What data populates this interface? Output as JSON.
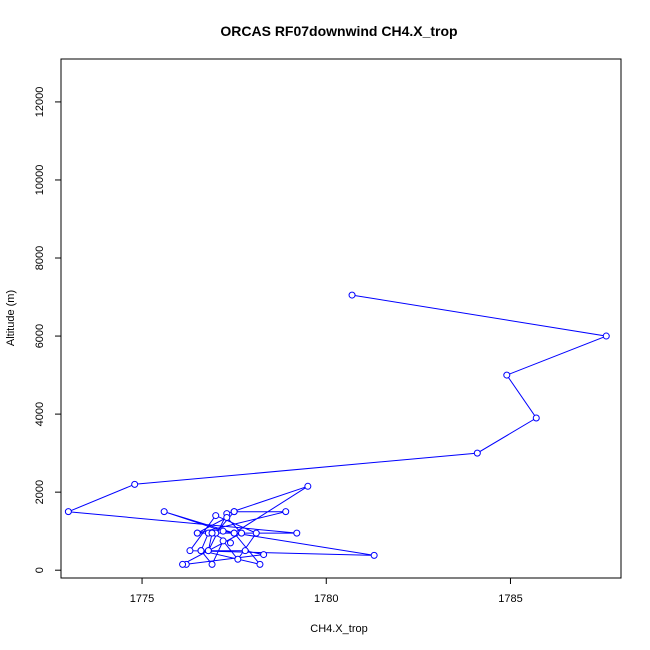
{
  "chart_data": {
    "type": "line",
    "title": "ORCAS RF07downwind CH4.X_trop",
    "xlabel": "CH4.X_trop",
    "ylabel": "Altitude (m)",
    "xlim": [
      1772.8,
      1788.0
    ],
    "ylim": [
      -200,
      13100
    ],
    "xticks": [
      1775,
      1780,
      1785
    ],
    "yticks": [
      0,
      2000,
      4000,
      6000,
      8000,
      10000,
      12000
    ],
    "grid": false,
    "legend": "none",
    "colors": {
      "series": "#0000ff",
      "axis": "#000000"
    },
    "series": [
      {
        "x": [
          1780.7,
          1787.6,
          1784.9,
          1785.7,
          1784.1,
          1774.8,
          1773.0,
          1779.2,
          1776.5,
          1778.9,
          1777.5,
          1777.5,
          1777.0,
          1776.8,
          1776.6,
          1777.8,
          1778.3,
          1776.2,
          1776.1,
          1776.8,
          1777.3,
          1779.5,
          1777.5,
          1775.6,
          1777.2,
          1781.3,
          1776.3,
          1777.0,
          1778.1,
          1777.6,
          1777.2,
          1776.9,
          1776.6,
          1778.2,
          1777.5,
          1776.5,
          1777.3,
          1777.7,
          1776.8,
          1776.9,
          1777.4
        ],
        "y": [
          7050,
          6000,
          5000,
          3900,
          3000,
          2200,
          1500,
          950,
          950,
          1500,
          1500,
          1500,
          950,
          950,
          500,
          500,
          400,
          150,
          150,
          500,
          1450,
          2150,
          950,
          1500,
          1000,
          380,
          500,
          1400,
          950,
          280,
          750,
          150,
          500,
          150,
          950,
          950,
          1350,
          950,
          500,
          950,
          700
        ]
      }
    ]
  }
}
